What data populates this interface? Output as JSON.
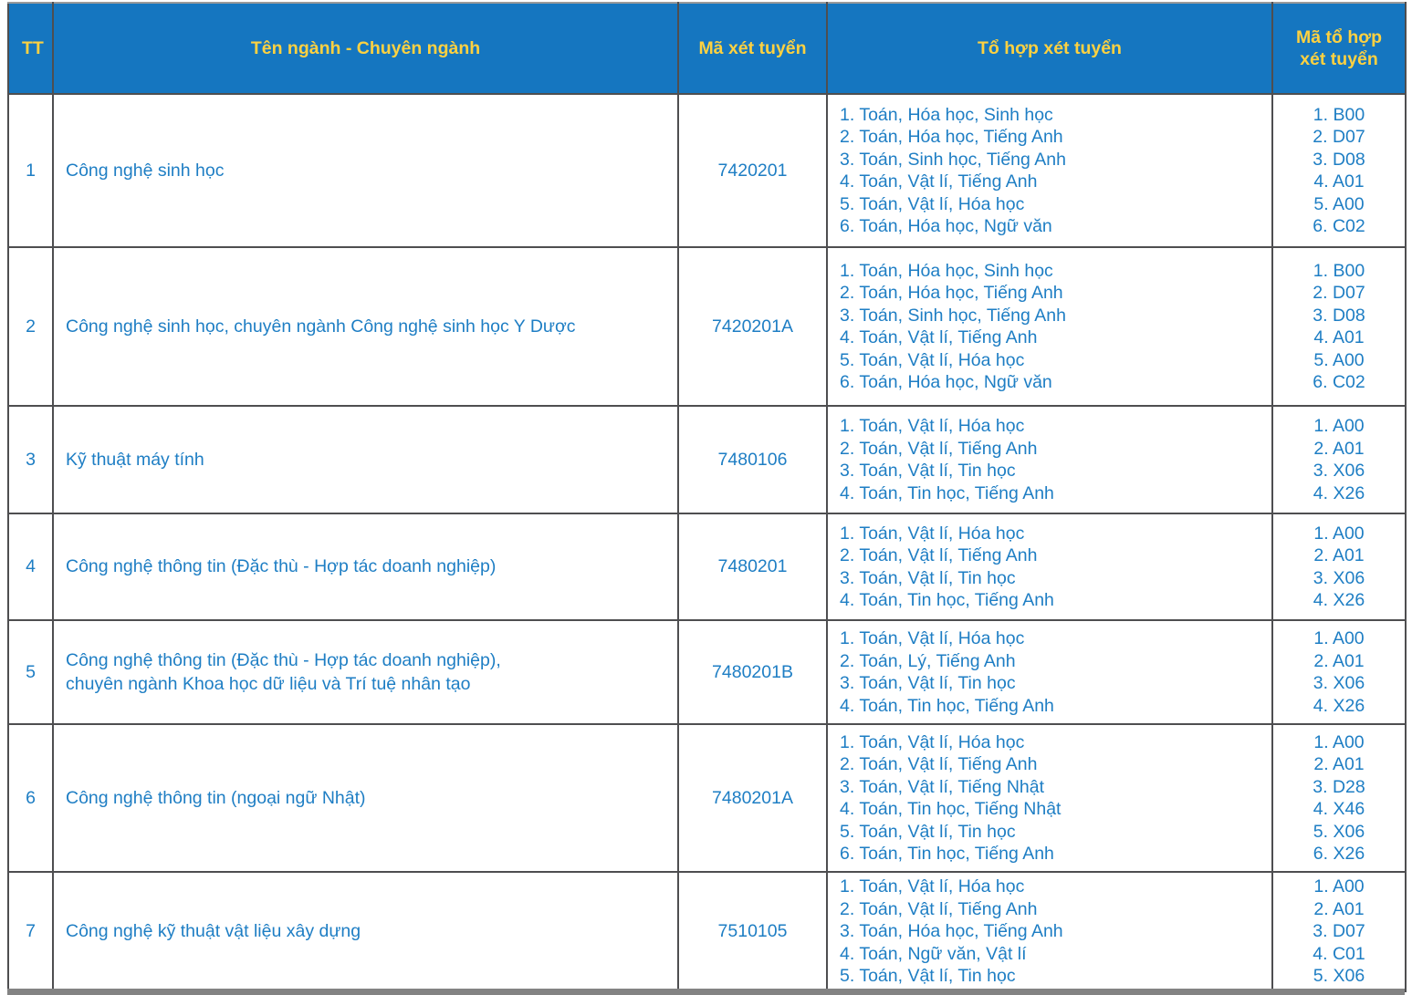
{
  "colors": {
    "header_bg": "#1576c0",
    "header_text": "#fdd141",
    "body_text": "#1e7ec4",
    "border": "#4e4e50"
  },
  "table": {
    "header": {
      "tt": "TT",
      "name": "Tên ngành - Chuyên ngành",
      "code": "Mã xét tuyển",
      "combos": "Tổ hợp xét tuyển",
      "combo_codes": "Mã tổ hợp xét tuyển"
    },
    "rows": [
      {
        "tt": "1",
        "name": "Công nghệ sinh học",
        "code": "7420201",
        "combos": [
          "1. Toán, Hóa học, Sinh học",
          "2. Toán, Hóa học, Tiếng Anh",
          "3. Toán, Sinh học, Tiếng Anh",
          "4. Toán, Vật lí, Tiếng Anh",
          "5. Toán, Vật lí, Hóa học",
          "6. Toán, Hóa học, Ngữ văn"
        ],
        "combo_codes": [
          "1. B00",
          "2. D07",
          "3. D08",
          "4. A01",
          "5. A00",
          "6. C02"
        ]
      },
      {
        "tt": "2",
        "name": "Công nghệ sinh học, chuyên ngành Công nghệ sinh học Y Dược",
        "code": "7420201A",
        "combos": [
          "1. Toán, Hóa học, Sinh học",
          "2. Toán, Hóa học, Tiếng Anh",
          "3. Toán, Sinh học, Tiếng Anh",
          "4. Toán, Vật lí, Tiếng Anh",
          "5. Toán, Vật lí, Hóa học",
          "6. Toán, Hóa học, Ngữ văn"
        ],
        "combo_codes": [
          "1. B00",
          "2. D07",
          "3. D08",
          "4. A01",
          "5. A00",
          "6. C02"
        ]
      },
      {
        "tt": "3",
        "name": "Kỹ thuật máy tính",
        "code": "7480106",
        "combos": [
          "1. Toán, Vật lí, Hóa học",
          "2. Toán, Vật lí, Tiếng Anh",
          "3. Toán, Vật lí, Tin học",
          "4. Toán, Tin học, Tiếng Anh"
        ],
        "combo_codes": [
          "1. A00",
          "2. A01",
          "3. X06",
          "4. X26"
        ]
      },
      {
        "tt": "4",
        "name": "Công nghệ thông tin (Đặc thù - Hợp tác doanh nghiệp)",
        "code": "7480201",
        "combos": [
          "1. Toán, Vật lí, Hóa học",
          "2. Toán, Vật lí, Tiếng Anh",
          "3. Toán, Vật lí, Tin học",
          "4. Toán, Tin học, Tiếng Anh"
        ],
        "combo_codes": [
          "1. A00",
          "2. A01",
          "3. X06",
          "4. X26"
        ]
      },
      {
        "tt": "5",
        "name": "Công nghệ thông tin (Đặc thù - Hợp tác doanh nghiệp),\nchuyên ngành Khoa học dữ liệu và Trí tuệ nhân tạo",
        "code": "7480201B",
        "combos": [
          "1. Toán, Vật lí, Hóa học",
          "2. Toán, Lý, Tiếng Anh",
          "3. Toán, Vật lí, Tin học",
          "4. Toán, Tin học, Tiếng Anh"
        ],
        "combo_codes": [
          "1. A00",
          "2. A01",
          "3. X06",
          "4. X26"
        ]
      },
      {
        "tt": "6",
        "name": "Công nghệ thông tin (ngoại ngữ Nhật)",
        "code": "7480201A",
        "combos": [
          "1. Toán, Vật lí, Hóa học",
          "2. Toán, Vật lí, Tiếng Anh",
          "3. Toán, Vật lí, Tiếng Nhật",
          "4. Toán, Tin học, Tiếng Nhật",
          "5. Toán, Vật lí, Tin học",
          "6. Toán, Tin học, Tiếng Anh"
        ],
        "combo_codes": [
          "1. A00",
          "2. A01",
          "3. D28",
          "4. X46",
          "5. X06",
          "6. X26"
        ]
      },
      {
        "tt": "7",
        "name": "Công nghệ kỹ thuật vật liệu xây dựng",
        "code": "7510105",
        "combos": [
          "1. Toán, Vật lí, Hóa học",
          "2. Toán, Vật lí, Tiếng Anh",
          "3. Toán, Hóa học, Tiếng Anh",
          "4. Toán, Ngữ văn, Vật lí",
          "5. Toán, Vật lí, Tin học"
        ],
        "combo_codes": [
          "1. A00",
          "2. A01",
          "3. D07",
          "4. C01",
          "5. X06"
        ]
      }
    ]
  }
}
